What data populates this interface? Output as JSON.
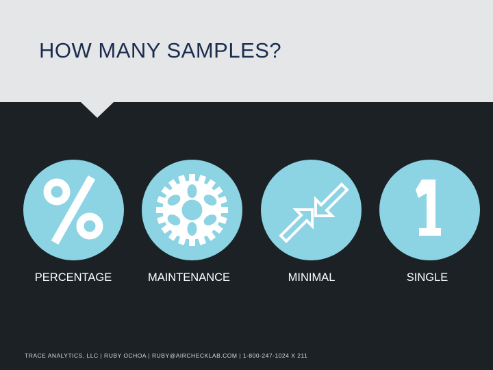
{
  "title": "HOW MANY SAMPLES?",
  "items": [
    {
      "label": "PERCENTAGE",
      "icon": "percent-icon"
    },
    {
      "label": "MAINTENANCE",
      "icon": "gear-icon"
    },
    {
      "label": "MINIMAL",
      "icon": "compress-arrows-icon"
    },
    {
      "label": "SINGLE",
      "icon": "number-one-icon"
    }
  ],
  "footer": "TRACE ANALYTICS, LLC | RUBY OCHOA | RUBY@AIRCHECKLAB.COM | 1-800-247-1024 X 211",
  "colors": {
    "header_background": "#e4e6e7",
    "slide_background": "#1c2126",
    "title": "#1b2c4f",
    "circle": "#8cd3e3",
    "icon": "#ffffff",
    "label": "#ffffff"
  }
}
